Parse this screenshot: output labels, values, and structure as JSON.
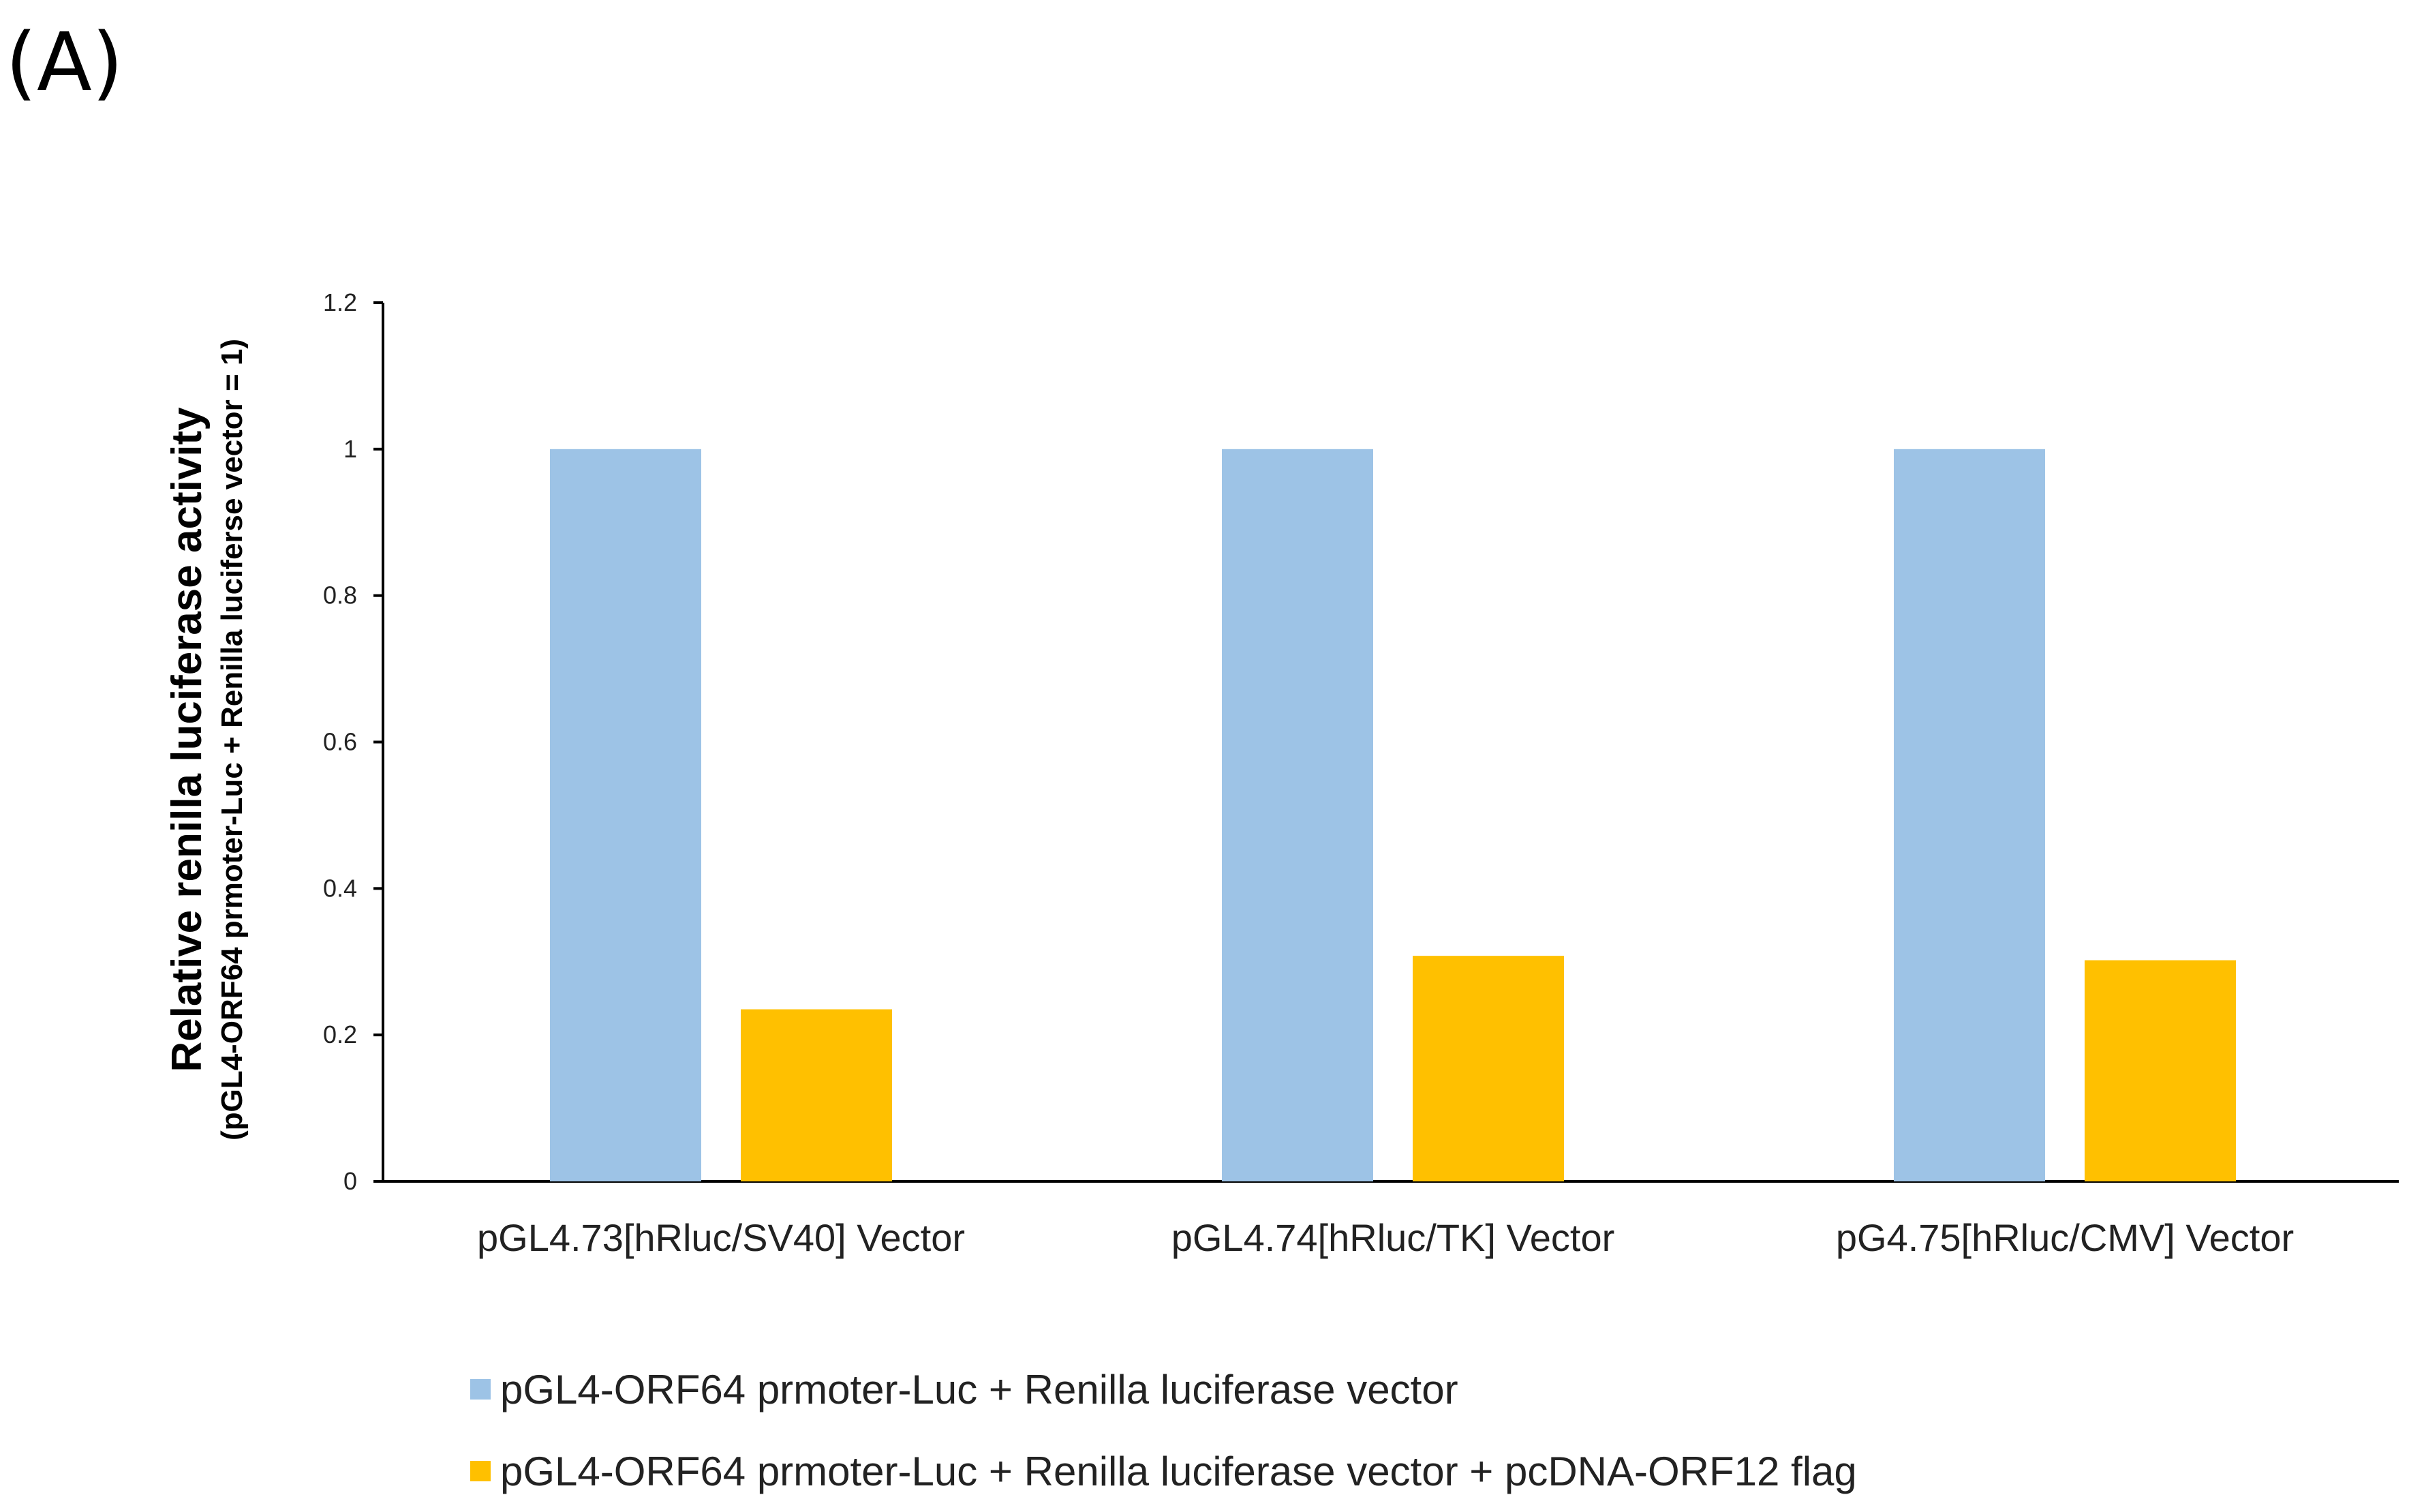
{
  "panel_label": "(A)",
  "colors": {
    "series1": "#9dc3e6",
    "series2": "#ffc000",
    "axis": "#000000"
  },
  "chart_data": {
    "type": "bar",
    "categories": [
      "pGL4.73[hRluc/SV40] Vector",
      "pGL4.74[hRluc/TK] Vector",
      "pG4.75[hRluc/CMV] Vector"
    ],
    "series": [
      {
        "name": "pGL4-ORF64 prmoter-Luc + Renilla luciferase vector",
        "values": [
          1,
          1,
          1
        ]
      },
      {
        "name": "pGL4-ORF64 prmoter-Luc + Renilla luciferase vector + pcDNA-ORF12 flag",
        "values": [
          0.235,
          0.308,
          0.302
        ]
      }
    ],
    "ylabel": "Relative renilla luciferase activity",
    "ylabel_sub": "(pGL4-ORF64 prmoter-Luc + Renilla luciferse vector = 1)",
    "ylim": [
      0,
      1.2
    ],
    "yticks": [
      "0",
      "0.2",
      "0.4",
      "0.6",
      "0.8",
      "1",
      "1.2"
    ],
    "grid": false,
    "legend_position": "bottom"
  }
}
